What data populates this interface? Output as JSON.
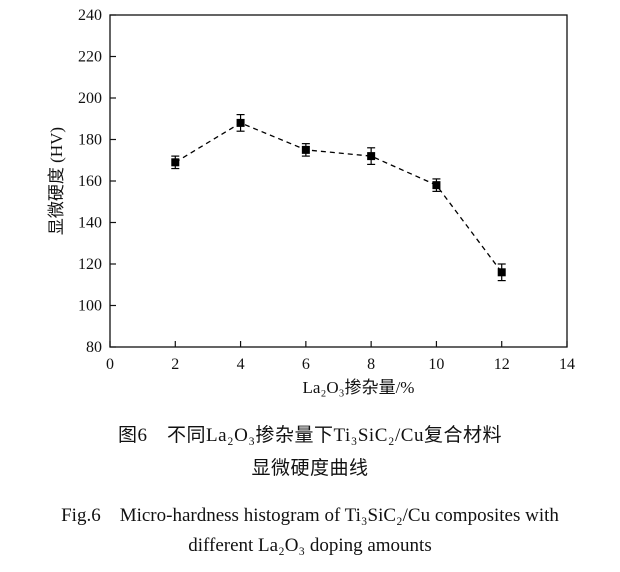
{
  "chart_data": {
    "type": "line",
    "x": [
      2,
      4,
      6,
      8,
      10,
      12
    ],
    "series": [
      {
        "values": [
          169,
          188,
          175,
          172,
          158,
          116
        ],
        "errors": [
          3,
          4,
          3,
          4,
          3,
          4
        ]
      }
    ],
    "xlabel": "La₂O₃掺杂量/%",
    "ylabel": "显微硬度 (HV)",
    "xlim": [
      0,
      14
    ],
    "ylim": [
      80,
      240
    ],
    "xticks": [
      0,
      2,
      4,
      6,
      8,
      10,
      12,
      14
    ],
    "yticks": [
      80,
      100,
      120,
      140,
      160,
      180,
      200,
      220,
      240
    ],
    "grid": false,
    "line_style": "dashed",
    "marker": "square",
    "color": "#000000"
  },
  "caption": {
    "cn_line1": "图6　不同La₂O₃掺杂量下Ti₃SiC₂/Cu复合材料",
    "cn_line2": "显微硬度曲线",
    "en_line1": "Fig.6　Micro-hardness histogram of Ti₃SiC₂/Cu composites with",
    "en_line2": "different La₂O₃ doping amounts"
  }
}
